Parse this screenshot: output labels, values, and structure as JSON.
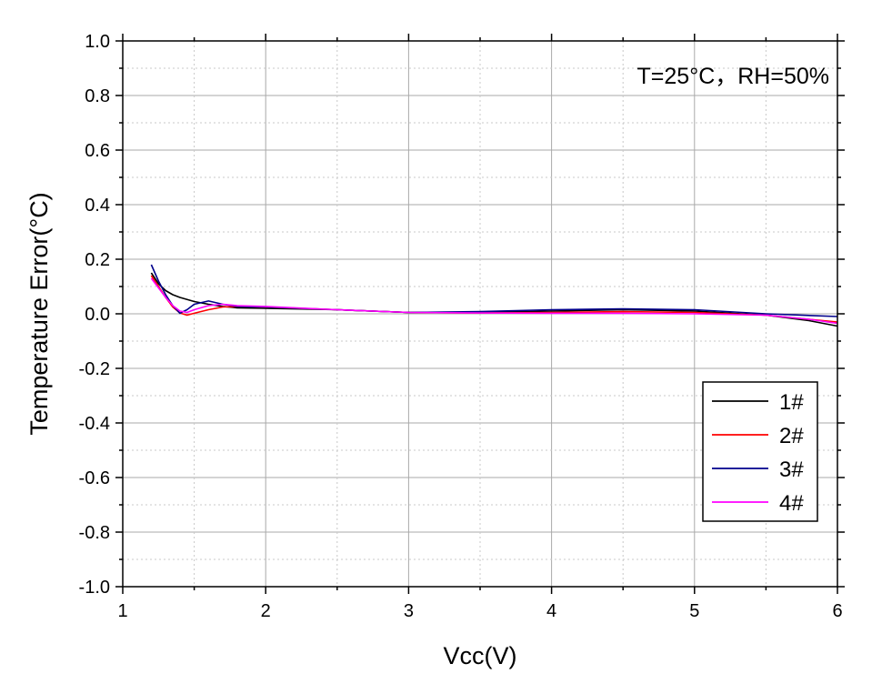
{
  "chart_data": {
    "type": "line",
    "title": "",
    "annotation": "T=25°C，RH=50%",
    "xlabel": "Vcc(V)",
    "ylabel": "Temperature Error(°C)",
    "xlim": [
      1,
      6
    ],
    "ylim": [
      -1.0,
      1.0
    ],
    "x_ticks": [
      1,
      2,
      3,
      4,
      5,
      6
    ],
    "x_tick_labels": [
      "1",
      "2",
      "3",
      "4",
      "5",
      "6"
    ],
    "y_ticks": [
      1.0,
      0.8,
      0.6,
      0.4,
      0.2,
      0.0,
      -0.2,
      -0.4,
      -0.6,
      -0.8,
      -1.0
    ],
    "y_tick_labels": [
      "1.0",
      "0.8",
      "0.6",
      "0.4",
      "0.2",
      "0.0",
      "-0.2",
      "-0.4",
      "-0.6",
      "-0.8",
      "-1.0"
    ],
    "grid": true,
    "legend_position": "bottom-right",
    "series": [
      {
        "name": "1#",
        "color": "#000000",
        "x": [
          1.2,
          1.25,
          1.3,
          1.35,
          1.4,
          1.5,
          1.6,
          1.7,
          1.8,
          2.0,
          2.5,
          3.0,
          3.5,
          4.0,
          4.5,
          5.0,
          5.5,
          5.8,
          6.0
        ],
        "y": [
          0.15,
          0.11,
          0.085,
          0.07,
          0.06,
          0.045,
          0.035,
          0.027,
          0.022,
          0.02,
          0.015,
          0.005,
          0.005,
          0.01,
          0.015,
          0.01,
          -0.005,
          -0.025,
          -0.045
        ]
      },
      {
        "name": "2#",
        "color": "#ff0000",
        "x": [
          1.2,
          1.25,
          1.3,
          1.35,
          1.4,
          1.45,
          1.5,
          1.6,
          1.7,
          1.8,
          2.0,
          2.5,
          3.0,
          3.5,
          4.0,
          4.5,
          5.0,
          5.5,
          5.8,
          6.0
        ],
        "y": [
          0.14,
          0.1,
          0.06,
          0.025,
          0.003,
          -0.005,
          0.002,
          0.015,
          0.025,
          0.027,
          0.025,
          0.015,
          0.005,
          0.003,
          0.005,
          0.008,
          0.005,
          -0.005,
          -0.02,
          -0.03
        ]
      },
      {
        "name": "3#",
        "color": "#00008b",
        "x": [
          1.2,
          1.25,
          1.3,
          1.35,
          1.4,
          1.45,
          1.5,
          1.6,
          1.7,
          1.8,
          2.0,
          2.5,
          3.0,
          3.5,
          4.0,
          4.5,
          5.0,
          5.5,
          6.0
        ],
        "y": [
          0.18,
          0.12,
          0.07,
          0.03,
          0.002,
          0.015,
          0.035,
          0.047,
          0.035,
          0.027,
          0.025,
          0.015,
          0.005,
          0.008,
          0.015,
          0.018,
          0.015,
          0.0,
          -0.01
        ]
      },
      {
        "name": "4#",
        "color": "#ff00ff",
        "x": [
          1.2,
          1.25,
          1.3,
          1.35,
          1.4,
          1.45,
          1.5,
          1.6,
          1.7,
          1.8,
          2.0,
          2.5,
          3.0,
          3.5,
          4.0,
          4.5,
          5.0,
          5.5,
          5.8,
          6.0
        ],
        "y": [
          0.13,
          0.095,
          0.06,
          0.03,
          0.01,
          0.005,
          0.015,
          0.03,
          0.035,
          0.03,
          0.027,
          0.015,
          0.005,
          0.003,
          0.002,
          0.002,
          0.0,
          -0.005,
          -0.02,
          -0.035
        ]
      }
    ]
  }
}
